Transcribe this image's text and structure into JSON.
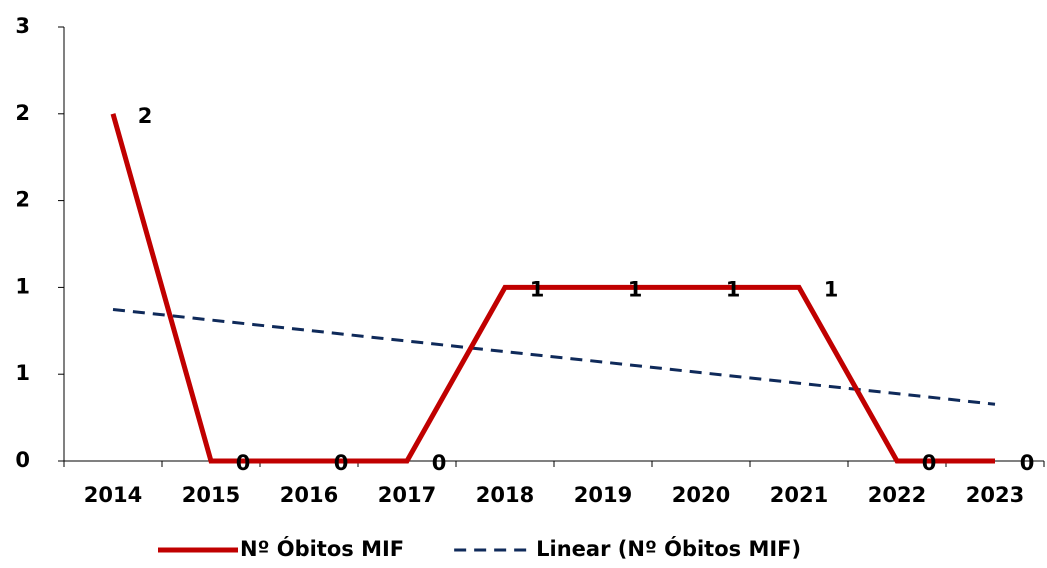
{
  "chart_data": {
    "type": "line",
    "categories": [
      "2014",
      "2015",
      "2016",
      "2017",
      "2018",
      "2019",
      "2020",
      "2021",
      "2022",
      "2023"
    ],
    "series": [
      {
        "name": "Nº Óbitos MIF",
        "color": "#c00000",
        "values": [
          2,
          0,
          0,
          0,
          1,
          1,
          1,
          1,
          0,
          0
        ],
        "data_labels": true
      },
      {
        "name": "Linear (Nº Óbitos MIF)",
        "color": "#0f2a5a",
        "dashed": true,
        "values": [
          0.873,
          0.812,
          0.752,
          0.691,
          0.63,
          0.57,
          0.509,
          0.448,
          0.388,
          0.327
        ]
      }
    ],
    "ylim": [
      0,
      2.5
    ],
    "yticks": [
      {
        "value": 0,
        "label": "0"
      },
      {
        "value": 0.5,
        "label": "1"
      },
      {
        "value": 1,
        "label": "1"
      },
      {
        "value": 1.5,
        "label": "2"
      },
      {
        "value": 2,
        "label": "2"
      },
      {
        "value": 2.5,
        "label": "3"
      }
    ],
    "grid": false,
    "legend": "bottom"
  }
}
